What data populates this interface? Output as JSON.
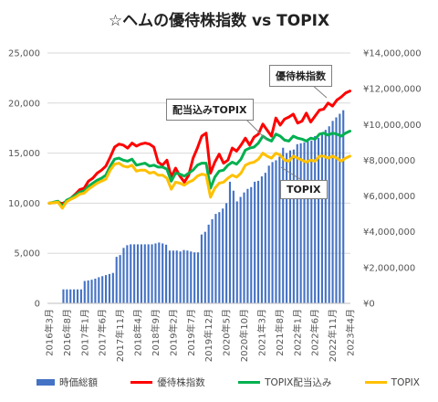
{
  "chart_data": {
    "type": "bar+line",
    "title": "☆ヘムの優待株指数 vs TOPIX",
    "y_left": {
      "min": 0,
      "max": 25000,
      "ticks": [
        "0",
        "5,000",
        "10,000",
        "15,000",
        "20,000",
        "25,000"
      ]
    },
    "y_right": {
      "min": 0,
      "max": 14000000,
      "ticks": [
        "¥0",
        "¥2,000,000",
        "¥4,000,000",
        "¥6,000,000",
        "¥8,000,000",
        "¥10,000,000",
        "¥12,000,000",
        "¥14,000,000"
      ]
    },
    "x_labels": [
      "2016年3月",
      "2016年8月",
      "2017年1月",
      "2017年6月",
      "2017年11月",
      "2018年4月",
      "2018年9月",
      "2019年2月",
      "2019年7月",
      "2019年12月",
      "2020年5月",
      "2020年10月",
      "2021年3月",
      "2021年8月",
      "2022年1月",
      "2022年6月",
      "2022年11月",
      "2023年4月"
    ],
    "x_start_month": "2016-03",
    "series": [
      {
        "name": "時価総額",
        "type": "bar",
        "axis": "right",
        "color": "#4472c4",
        "values": [
          780000,
          780000,
          780000,
          780000,
          780000,
          780000,
          1250000,
          1280000,
          1320000,
          1380000,
          1460000,
          1520000,
          1580000,
          1640000,
          1700000,
          2600000,
          2700000,
          3100000,
          3250000,
          3300000,
          3300000,
          3300000,
          3300000,
          3300000,
          3300000,
          3300000,
          3350000,
          3400000,
          3350000,
          3280000,
          2950000,
          2950000,
          2950000,
          2900000,
          2980000,
          2950000,
          2900000,
          2850000,
          2850000,
          3850000,
          4000000,
          4400000,
          4700000,
          5000000,
          5100000,
          5300000,
          5600000,
          6800000,
          6300000,
          5700000,
          5950000,
          6200000,
          6400000,
          6500000,
          6800000,
          6850000,
          7100000,
          7300000,
          7700000,
          7900000,
          8000000,
          8200000,
          8700000,
          8400000,
          8550000,
          8600000,
          8900000,
          8950000,
          9000000,
          9050000,
          9100000,
          9350000,
          9250000,
          9500000,
          9700000,
          9900000,
          10200000,
          10400000,
          10600000,
          10800000
        ]
      },
      {
        "name": "優待株指数",
        "type": "line",
        "axis": "left",
        "color": "#ff0000",
        "values": [
          10000,
          10050,
          10100,
          9950,
          10200,
          10500,
          10900,
          11350,
          11500,
          12200,
          12500,
          13000,
          13300,
          13700,
          14600,
          15600,
          15900,
          15800,
          15500,
          16000,
          15700,
          15900,
          16000,
          15900,
          15600,
          14100,
          13800,
          14300,
          12600,
          13500,
          12700,
          12100,
          12800,
          14500,
          15500,
          16700,
          17000,
          13000,
          14100,
          14900,
          14000,
          14300,
          15500,
          15200,
          15800,
          16500,
          15800,
          16600,
          16900,
          17900,
          17300,
          16700,
          18500,
          17800,
          18400,
          18600,
          18900,
          18000,
          18200,
          19000,
          18100,
          18700,
          19300,
          19400,
          20000,
          19700,
          20300,
          20600,
          21000,
          21200
        ]
      },
      {
        "name": "TOPIX配当込み",
        "type": "line",
        "axis": "left",
        "color": "#00b050",
        "values": [
          10000,
          10100,
          10200,
          9700,
          10300,
          10500,
          10800,
          11100,
          11200,
          11700,
          12000,
          12300,
          12500,
          12800,
          13700,
          14400,
          14500,
          14300,
          14200,
          14400,
          13800,
          13900,
          14000,
          13700,
          13800,
          13600,
          13600,
          13400,
          12200,
          13000,
          12900,
          12700,
          13000,
          13300,
          13800,
          14000,
          14000,
          11500,
          12600,
          13200,
          13300,
          13800,
          14100,
          13900,
          14400,
          15300,
          15500,
          15600,
          16000,
          16700,
          16400,
          16200,
          16900,
          16700,
          16300,
          16200,
          16700,
          16500,
          16400,
          16200,
          16500,
          16400,
          16900,
          17000,
          16800,
          17000,
          16900,
          16700,
          17000,
          17200
        ]
      },
      {
        "name": "TOPIX",
        "type": "line",
        "axis": "left",
        "color": "#ffc000",
        "values": [
          10000,
          10050,
          10100,
          9500,
          10150,
          10400,
          10600,
          10900,
          11000,
          11400,
          11700,
          12000,
          12200,
          12400,
          13300,
          13900,
          14000,
          13700,
          13600,
          13800,
          13200,
          13300,
          13300,
          13000,
          13100,
          12800,
          12800,
          12500,
          11400,
          12100,
          12000,
          11800,
          12100,
          12300,
          12700,
          12900,
          12800,
          10600,
          11500,
          12000,
          12100,
          12500,
          12800,
          12600,
          13000,
          13800,
          14000,
          14100,
          14400,
          15000,
          14700,
          14500,
          15000,
          14800,
          14300,
          14200,
          14700,
          14500,
          14300,
          14100,
          14300,
          14200,
          14700,
          14700,
          14500,
          14700,
          14500,
          14200,
          14500,
          14700
        ]
      }
    ],
    "annotations": [
      "優待株指数",
      "配当込みTOPIX",
      "TOPIX"
    ],
    "legend_position": "bottom"
  }
}
